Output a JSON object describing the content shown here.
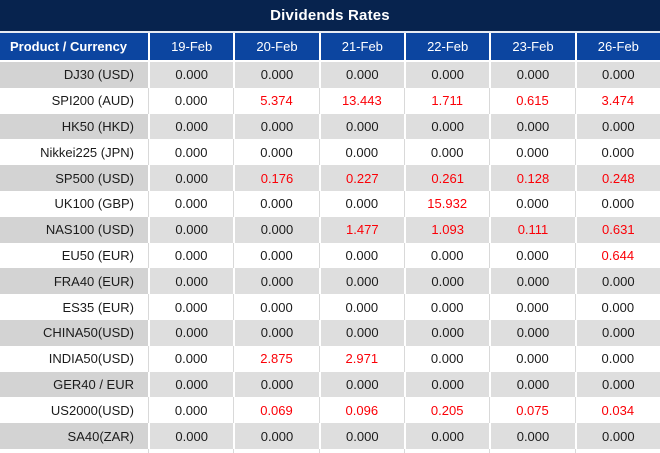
{
  "title": "Dividends Rates",
  "colors": {
    "title-bg": "#07234e",
    "header-bg": "#0c45a0",
    "header-text": "#ffffff",
    "row-gray-product": "#d3d3d3",
    "row-gray-value": "#dedede",
    "row-white": "#ffffff",
    "value-zero": "#1b1b1b",
    "value-nonzero": "#fb0007"
  },
  "table": {
    "product_header": "Product / Currency",
    "date_columns": [
      "19-Feb",
      "20-Feb",
      "21-Feb",
      "22-Feb",
      "23-Feb",
      "26-Feb"
    ],
    "zero_value": "0.000",
    "rows": [
      {
        "product": "DJ30 (USD)",
        "values": [
          "0.000",
          "0.000",
          "0.000",
          "0.000",
          "0.000",
          "0.000"
        ]
      },
      {
        "product": "SPI200 (AUD)",
        "values": [
          "0.000",
          "5.374",
          "13.443",
          "1.711",
          "0.615",
          "3.474"
        ]
      },
      {
        "product": "HK50 (HKD)",
        "values": [
          "0.000",
          "0.000",
          "0.000",
          "0.000",
          "0.000",
          "0.000"
        ]
      },
      {
        "product": "Nikkei225 (JPN)",
        "values": [
          "0.000",
          "0.000",
          "0.000",
          "0.000",
          "0.000",
          "0.000"
        ]
      },
      {
        "product": "SP500 (USD)",
        "values": [
          "0.000",
          "0.176",
          "0.227",
          "0.261",
          "0.128",
          "0.248"
        ]
      },
      {
        "product": "UK100 (GBP)",
        "values": [
          "0.000",
          "0.000",
          "0.000",
          "15.932",
          "0.000",
          "0.000"
        ]
      },
      {
        "product": "NAS100 (USD)",
        "values": [
          "0.000",
          "0.000",
          "1.477",
          "1.093",
          "0.111",
          "0.631"
        ]
      },
      {
        "product": "EU50 (EUR)",
        "values": [
          "0.000",
          "0.000",
          "0.000",
          "0.000",
          "0.000",
          "0.644"
        ]
      },
      {
        "product": "FRA40 (EUR)",
        "values": [
          "0.000",
          "0.000",
          "0.000",
          "0.000",
          "0.000",
          "0.000"
        ]
      },
      {
        "product": "ES35 (EUR)",
        "values": [
          "0.000",
          "0.000",
          "0.000",
          "0.000",
          "0.000",
          "0.000"
        ]
      },
      {
        "product": "CHINA50(USD)",
        "values": [
          "0.000",
          "0.000",
          "0.000",
          "0.000",
          "0.000",
          "0.000"
        ]
      },
      {
        "product": "INDIA50(USD)",
        "values": [
          "0.000",
          "2.875",
          "2.971",
          "0.000",
          "0.000",
          "0.000"
        ]
      },
      {
        "product": "GER40 / EUR",
        "values": [
          "0.000",
          "0.000",
          "0.000",
          "0.000",
          "0.000",
          "0.000"
        ]
      },
      {
        "product": "US2000(USD)",
        "values": [
          "0.000",
          "0.069",
          "0.096",
          "0.205",
          "0.075",
          "0.034"
        ]
      },
      {
        "product": "SA40(ZAR)",
        "values": [
          "0.000",
          "0.000",
          "0.000",
          "0.000",
          "0.000",
          "0.000"
        ]
      }
    ]
  }
}
